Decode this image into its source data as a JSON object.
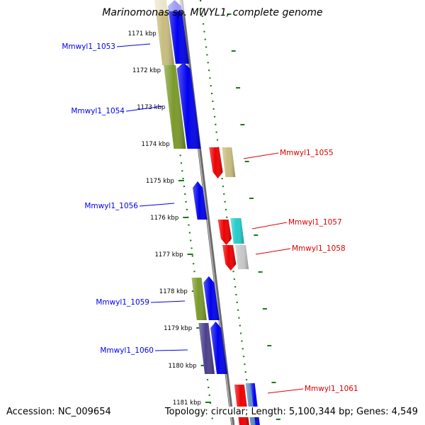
{
  "title": "Marinomonas sp. MWYL1, complete genome",
  "footer": {
    "accession": "Accession: NC_009654",
    "summary": "Topology: circular; Length: 5,100,344 bp; Genes: 4,549"
  },
  "ticks": [
    {
      "label": "1171 kbp"
    },
    {
      "label": "1172 kbp"
    },
    {
      "label": "1173 kbp"
    },
    {
      "label": "1174 kbp"
    },
    {
      "label": "1175 kbp"
    },
    {
      "label": "1176 kbp"
    },
    {
      "label": "1177 kbp"
    },
    {
      "label": "1178 kbp"
    },
    {
      "label": "1179 kbp"
    },
    {
      "label": "1180 kbp"
    },
    {
      "label": "1181 kbp"
    }
  ],
  "genes": [
    {
      "label": "Mmwyl1_1053",
      "strand": "minus",
      "color": "#0000ee"
    },
    {
      "label": "Mmwyl1_1054",
      "strand": "minus",
      "color": "#0000ee"
    },
    {
      "label": "Mmwyl1_1055",
      "strand": "plus",
      "color": "#dd0000"
    },
    {
      "label": "Mmwyl1_1056",
      "strand": "minus",
      "color": "#0000ee"
    },
    {
      "label": "Mmwyl1_1057",
      "strand": "plus",
      "color": "#dd0000"
    },
    {
      "label": "Mmwyl1_1058",
      "strand": "plus",
      "color": "#dd0000"
    },
    {
      "label": "Mmwyl1_1059",
      "strand": "minus",
      "color": "#0000ee"
    },
    {
      "label": "Mmwyl1_1060",
      "strand": "minus",
      "color": "#0000ee"
    },
    {
      "label": "Mmwyl1_1061",
      "strand": "plus",
      "color": "#dd0000"
    }
  ],
  "colors": {
    "minus_strand": "#0000ee",
    "plus_strand": "#ee0000",
    "backbone": "#8c8c8c",
    "tick": "#1a7a1a",
    "cog_olive": "#7a9a2a",
    "cog_khaki": "#c8bd7e",
    "cog_purple": "#4a3f8c",
    "cog_cyan": "#22cccc",
    "cog_grey": "#c8c8c8",
    "cog_steelblue": "#5f8fc0"
  }
}
